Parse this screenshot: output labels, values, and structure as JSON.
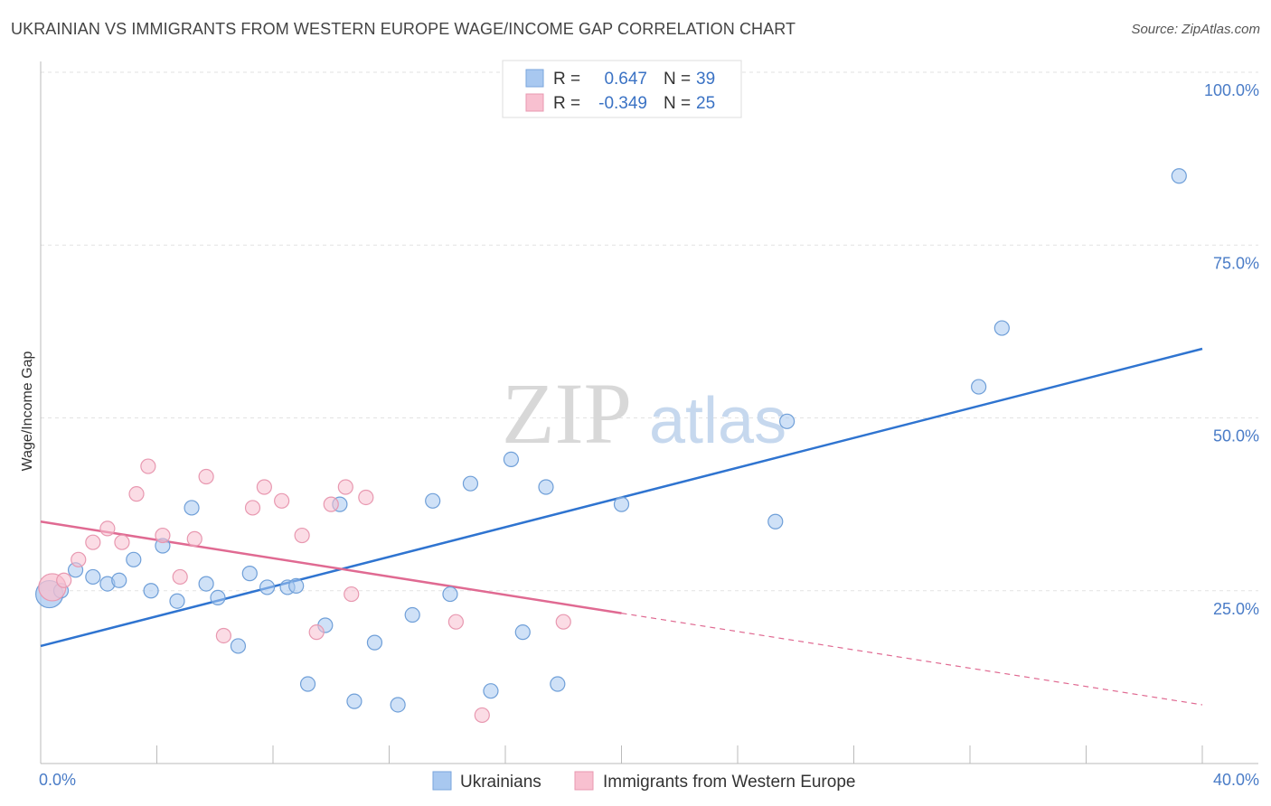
{
  "title": "UKRAINIAN VS IMMIGRANTS FROM WESTERN EUROPE WAGE/INCOME GAP CORRELATION CHART",
  "source": "Source: ZipAtlas.com",
  "watermark": {
    "zip": "ZIP",
    "atlas": "atlas"
  },
  "legend_top": [
    {
      "r_label": "R =",
      "r_value": "0.647",
      "n_label": "N =",
      "n_value": "39",
      "color": "#a8c8f0",
      "edge": "#7aa6dd"
    },
    {
      "r_label": "R =",
      "r_value": "-0.349",
      "n_label": "N =",
      "n_value": "25",
      "color": "#f8c0d0",
      "edge": "#e898b0"
    }
  ],
  "chart_data": {
    "type": "scatter",
    "title": "UKRAINIAN VS IMMIGRANTS FROM WESTERN EUROPE WAGE/INCOME GAP CORRELATION CHART",
    "ylabel": "Wage/Income Gap",
    "xlabel": "",
    "xlim": [
      0,
      40
    ],
    "ylim": [
      0,
      100
    ],
    "x_tick_labels": [
      "0.0%",
      "40.0%"
    ],
    "y_tick_labels": [
      "100.0%",
      "75.0%",
      "50.0%",
      "25.0%"
    ],
    "y_ticks": [
      100,
      75,
      50,
      25
    ],
    "series": [
      {
        "name": "Ukrainians",
        "color": "#a8c8f0",
        "edge": "#6f9fd8",
        "line_color": "#2f74d0",
        "points": [
          [
            0.3,
            24.5
          ],
          [
            0.7,
            25
          ],
          [
            1.2,
            28
          ],
          [
            1.8,
            27
          ],
          [
            2.3,
            26
          ],
          [
            2.7,
            26.5
          ],
          [
            3.2,
            29.5
          ],
          [
            3.8,
            25
          ],
          [
            4.2,
            31.5
          ],
          [
            4.7,
            23.5
          ],
          [
            5.2,
            37
          ],
          [
            5.7,
            26
          ],
          [
            6.1,
            24
          ],
          [
            6.8,
            17
          ],
          [
            7.2,
            27.5
          ],
          [
            7.8,
            25.5
          ],
          [
            8.5,
            25.5
          ],
          [
            8.8,
            25.7
          ],
          [
            9.2,
            11.5
          ],
          [
            9.8,
            20
          ],
          [
            10.3,
            37.5
          ],
          [
            10.8,
            9
          ],
          [
            11.5,
            17.5
          ],
          [
            12.3,
            8.5
          ],
          [
            12.8,
            21.5
          ],
          [
            13.5,
            38
          ],
          [
            14.1,
            24.5
          ],
          [
            14.8,
            40.5
          ],
          [
            15.5,
            10.5
          ],
          [
            16.2,
            44
          ],
          [
            16.6,
            19
          ],
          [
            17.4,
            40
          ],
          [
            17.8,
            11.5
          ],
          [
            20.0,
            37.5
          ],
          [
            25.7,
            49.5
          ],
          [
            25.3,
            35
          ],
          [
            32.3,
            54.5
          ],
          [
            33.1,
            63
          ],
          [
            39.2,
            85
          ]
        ],
        "trend": {
          "x": [
            0,
            40
          ],
          "y": [
            17,
            60
          ],
          "dashed_from": null
        }
      },
      {
        "name": "Immigrants from Western Europe",
        "color": "#f8c0d0",
        "edge": "#e898b0",
        "line_color": "#e06a92",
        "points": [
          [
            0.4,
            25.5
          ],
          [
            0.8,
            26.5
          ],
          [
            1.3,
            29.5
          ],
          [
            1.8,
            32
          ],
          [
            2.3,
            34
          ],
          [
            2.8,
            32
          ],
          [
            3.3,
            39
          ],
          [
            3.7,
            43
          ],
          [
            4.2,
            33
          ],
          [
            4.8,
            27
          ],
          [
            5.3,
            32.5
          ],
          [
            5.7,
            41.5
          ],
          [
            6.3,
            18.5
          ],
          [
            7.3,
            37
          ],
          [
            7.7,
            40
          ],
          [
            8.3,
            38
          ],
          [
            9.0,
            33
          ],
          [
            9.5,
            19
          ],
          [
            10.0,
            37.5
          ],
          [
            10.5,
            40
          ],
          [
            10.7,
            24.5
          ],
          [
            11.2,
            38.5
          ],
          [
            14.3,
            20.5
          ],
          [
            15.2,
            7
          ],
          [
            18.0,
            20.5
          ]
        ],
        "trend": {
          "x": [
            0,
            40
          ],
          "y": [
            35,
            8.5
          ],
          "solid_until_x": 20
        }
      }
    ],
    "grid": true,
    "legend": "top-center"
  }
}
